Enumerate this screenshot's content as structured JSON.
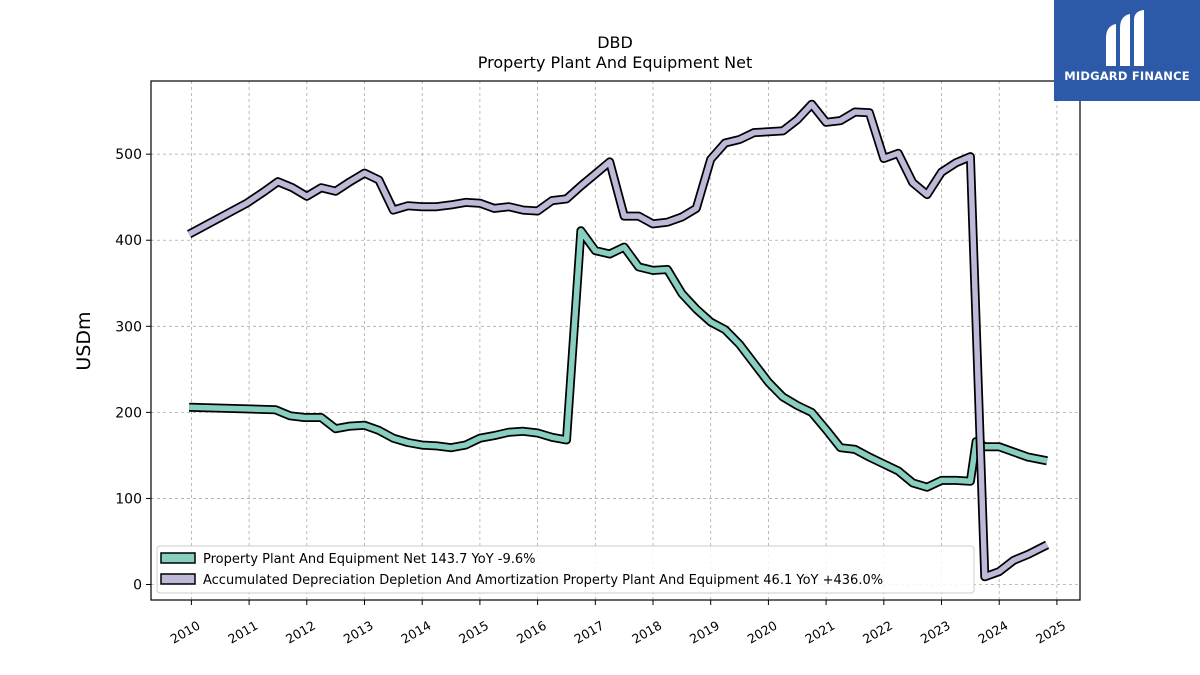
{
  "chart_data": {
    "type": "line",
    "title": "DBD",
    "subtitle": "Property Plant And Equipment Net",
    "ylabel": "USDm",
    "xlabel": "",
    "xlim": [
      2009.3,
      2025.4
    ],
    "ylim": [
      -18,
      585
    ],
    "xticks": [
      2010,
      2011,
      2012,
      2013,
      2014,
      2015,
      2016,
      2017,
      2018,
      2019,
      2020,
      2021,
      2022,
      2023,
      2024,
      2025
    ],
    "yticks": [
      0,
      100,
      200,
      300,
      400,
      500
    ],
    "grid": true,
    "legend_position": "lower-left",
    "series": [
      {
        "name": "Property Plant And Equipment Net",
        "legend_label": "Property Plant And Equipment Net  143.7 YoY -9.6%",
        "color": "#88cfc1",
        "points": [
          [
            2009.96,
            206
          ],
          [
            2010.96,
            204
          ],
          [
            2011.46,
            203
          ],
          [
            2011.71,
            196
          ],
          [
            2011.96,
            194
          ],
          [
            2012.25,
            194
          ],
          [
            2012.5,
            181
          ],
          [
            2012.75,
            184
          ],
          [
            2013.0,
            185
          ],
          [
            2013.25,
            179
          ],
          [
            2013.5,
            170
          ],
          [
            2013.75,
            165
          ],
          [
            2014.0,
            162
          ],
          [
            2014.25,
            161
          ],
          [
            2014.5,
            159
          ],
          [
            2014.75,
            162
          ],
          [
            2015.0,
            170
          ],
          [
            2015.25,
            173
          ],
          [
            2015.5,
            177
          ],
          [
            2015.75,
            178
          ],
          [
            2016.0,
            176
          ],
          [
            2016.25,
            171
          ],
          [
            2016.5,
            168
          ],
          [
            2016.75,
            411
          ],
          [
            2017.0,
            388
          ],
          [
            2017.25,
            384
          ],
          [
            2017.5,
            392
          ],
          [
            2017.75,
            369
          ],
          [
            2018.0,
            365
          ],
          [
            2018.25,
            366
          ],
          [
            2018.5,
            338
          ],
          [
            2018.75,
            320
          ],
          [
            2019.0,
            305
          ],
          [
            2019.25,
            296
          ],
          [
            2019.5,
            279
          ],
          [
            2019.75,
            257
          ],
          [
            2020.0,
            235
          ],
          [
            2020.25,
            218
          ],
          [
            2020.5,
            208
          ],
          [
            2020.75,
            200
          ],
          [
            2021.0,
            180
          ],
          [
            2021.25,
            159
          ],
          [
            2021.5,
            157
          ],
          [
            2021.75,
            148
          ],
          [
            2022.0,
            140
          ],
          [
            2022.25,
            132
          ],
          [
            2022.5,
            118
          ],
          [
            2022.75,
            113
          ],
          [
            2023.0,
            121
          ],
          [
            2023.25,
            121
          ],
          [
            2023.5,
            120
          ],
          [
            2023.6,
            166
          ],
          [
            2023.75,
            160
          ],
          [
            2024.0,
            160
          ],
          [
            2024.5,
            148
          ],
          [
            2024.83,
            143.7
          ]
        ]
      },
      {
        "name": "Accumulated Depreciation Depletion And Amortization Property Plant And Equipment",
        "legend_label": "Accumulated Depreciation Depletion And Amortization Property Plant And Equipment  46.1 YoY +436.0%",
        "color": "#bcb9d9",
        "points": [
          [
            2009.96,
            407
          ],
          [
            2010.96,
            443
          ],
          [
            2011.25,
            456
          ],
          [
            2011.5,
            468
          ],
          [
            2011.75,
            461
          ],
          [
            2012.0,
            451
          ],
          [
            2012.25,
            461
          ],
          [
            2012.5,
            457
          ],
          [
            2012.75,
            468
          ],
          [
            2013.0,
            478
          ],
          [
            2013.25,
            470
          ],
          [
            2013.5,
            435
          ],
          [
            2013.75,
            440
          ],
          [
            2014.0,
            439
          ],
          [
            2014.25,
            439
          ],
          [
            2014.5,
            441
          ],
          [
            2014.75,
            444
          ],
          [
            2015.0,
            443
          ],
          [
            2015.25,
            437
          ],
          [
            2015.5,
            439
          ],
          [
            2015.75,
            435
          ],
          [
            2016.0,
            434
          ],
          [
            2016.25,
            446
          ],
          [
            2016.5,
            448
          ],
          [
            2016.75,
            463
          ],
          [
            2017.0,
            477
          ],
          [
            2017.25,
            491
          ],
          [
            2017.5,
            428
          ],
          [
            2017.75,
            428
          ],
          [
            2018.0,
            419
          ],
          [
            2018.25,
            421
          ],
          [
            2018.5,
            427
          ],
          [
            2018.75,
            437
          ],
          [
            2019.0,
            494
          ],
          [
            2019.25,
            513
          ],
          [
            2019.5,
            517
          ],
          [
            2019.75,
            525
          ],
          [
            2020.0,
            526
          ],
          [
            2020.25,
            527
          ],
          [
            2020.5,
            540
          ],
          [
            2020.75,
            558
          ],
          [
            2021.0,
            537
          ],
          [
            2021.25,
            539
          ],
          [
            2021.5,
            549
          ],
          [
            2021.75,
            548
          ],
          [
            2022.0,
            495
          ],
          [
            2022.25,
            501
          ],
          [
            2022.5,
            467
          ],
          [
            2022.75,
            453
          ],
          [
            2023.0,
            479
          ],
          [
            2023.25,
            490
          ],
          [
            2023.5,
            497
          ],
          [
            2023.75,
            9
          ],
          [
            2024.0,
            15
          ],
          [
            2024.25,
            28
          ],
          [
            2024.5,
            35
          ],
          [
            2024.83,
            46.1
          ]
        ]
      }
    ]
  },
  "logo": {
    "text": "MIDGARD FINANCE",
    "background": "#2c59a8"
  }
}
